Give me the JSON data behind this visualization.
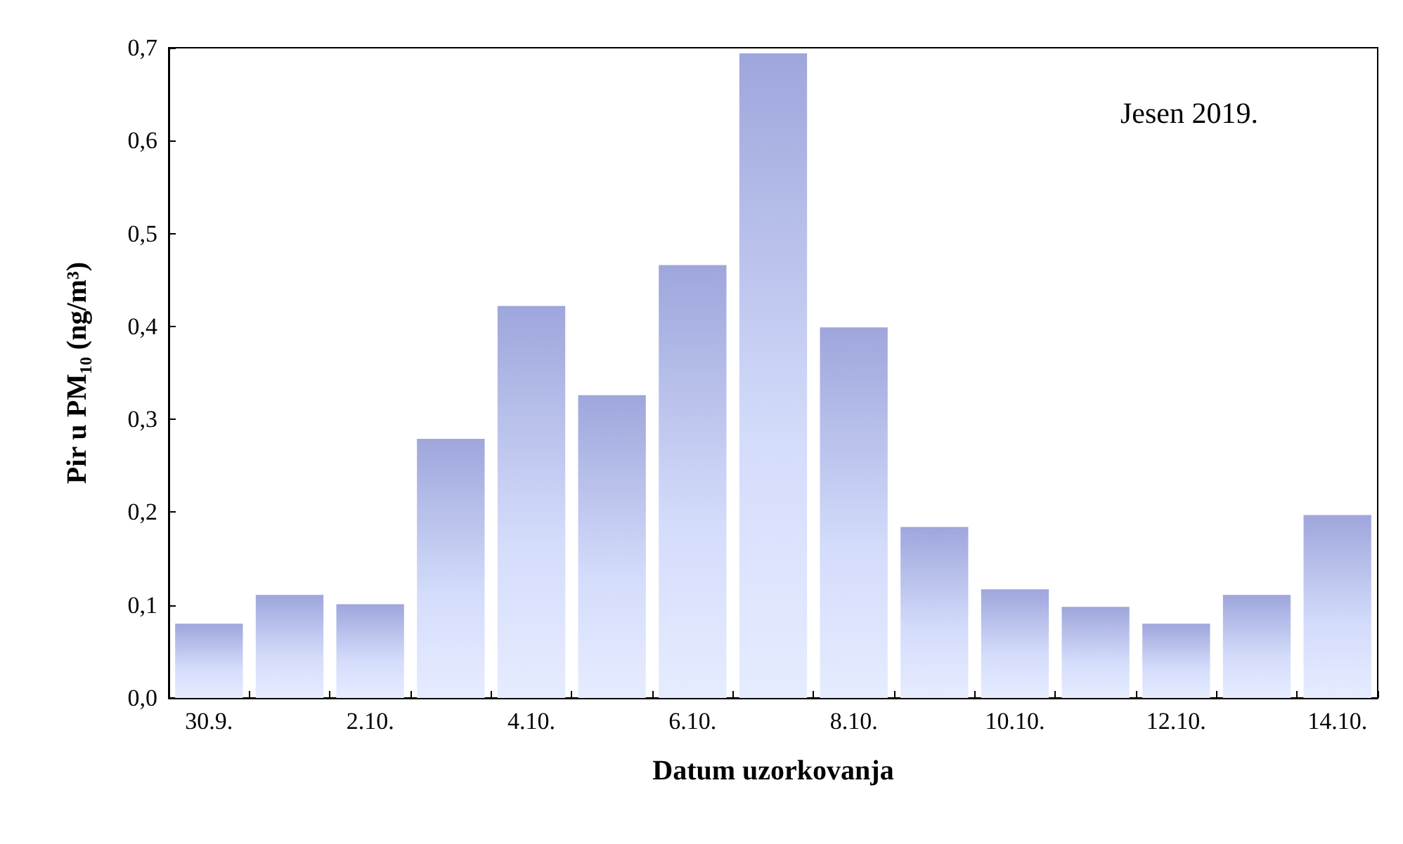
{
  "chart_data": {
    "type": "bar",
    "xlabel": "Datum uzorkovanja",
    "ylabel": "Pir u PM₁₀ (ng/m³)",
    "annotations": [
      "Jesen 2019."
    ],
    "categories": [
      "30.9.",
      null,
      "2.10.",
      null,
      "4.10.",
      null,
      "6.10.",
      null,
      "8.10.",
      null,
      "10.10.",
      null,
      "12.10.",
      null,
      "14.10."
    ],
    "values": [
      0.08,
      0.111,
      0.101,
      0.279,
      0.422,
      0.326,
      0.466,
      0.694,
      0.399,
      0.184,
      0.117,
      0.098,
      0.08,
      0.111,
      0.197
    ],
    "color": "#9ea6dc",
    "ylim": [
      0,
      0.7
    ],
    "yticks": [
      {
        "value": 0,
        "label": "0,0"
      },
      {
        "value": 0.1,
        "label": "0,1"
      },
      {
        "value": 0.2,
        "label": "0,2"
      },
      {
        "value": 0.3,
        "label": "0,3"
      },
      {
        "value": 0.4,
        "label": "0,4"
      },
      {
        "value": 0.5,
        "label": "0,5"
      },
      {
        "value": 0.6,
        "label": "0,6"
      },
      {
        "value": 0.7,
        "label": "0,7"
      }
    ],
    "grid": false
  }
}
